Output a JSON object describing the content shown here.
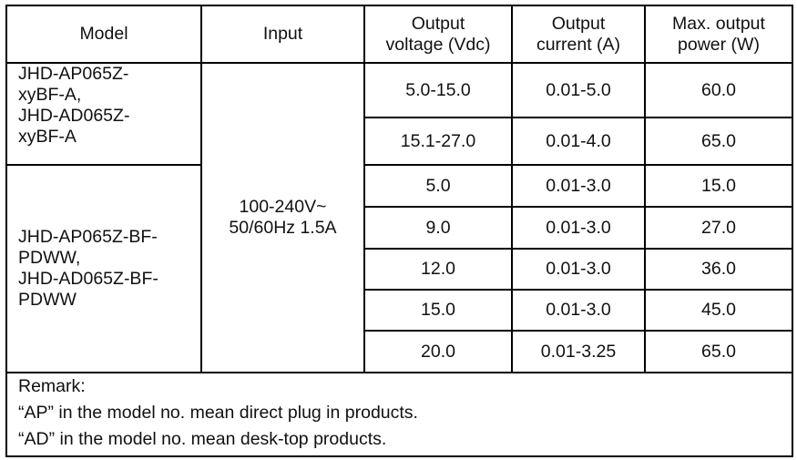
{
  "headers": {
    "model": "Model",
    "input": "Input",
    "voltage": [
      "Output",
      "voltage (Vdc)"
    ],
    "current": [
      "Output",
      "current (A)"
    ],
    "power": [
      "Max. output",
      "power (W)"
    ]
  },
  "groups": [
    {
      "model_lines": [
        "JHD-AP065Z-",
        "xyBF-A,",
        "JHD-AD065Z-",
        "xyBF-A"
      ]
    },
    {
      "model_lines": [
        "JHD-AP065Z-BF-",
        "PDWW,",
        "JHD-AD065Z-BF-",
        "PDWW"
      ]
    }
  ],
  "input_lines": [
    "100-240V~",
    "50/60Hz 1.5A"
  ],
  "rows": [
    {
      "voltage": "5.0-15.0",
      "current": "0.01-5.0",
      "power": "60.0"
    },
    {
      "voltage": "15.1-27.0",
      "current": "0.01-4.0",
      "power": "65.0"
    },
    {
      "voltage": "5.0",
      "current": "0.01-3.0",
      "power": "15.0"
    },
    {
      "voltage": "9.0",
      "current": "0.01-3.0",
      "power": "27.0"
    },
    {
      "voltage": "12.0",
      "current": "0.01-3.0",
      "power": "36.0"
    },
    {
      "voltage": "15.0",
      "current": "0.01-3.0",
      "power": "45.0"
    },
    {
      "voltage": "20.0",
      "current": "0.01-3.25",
      "power": "65.0"
    }
  ],
  "remark": [
    "Remark:",
    "“AP” in the model no. mean direct plug in products.",
    "“AD” in the model no. mean desk-top products."
  ]
}
